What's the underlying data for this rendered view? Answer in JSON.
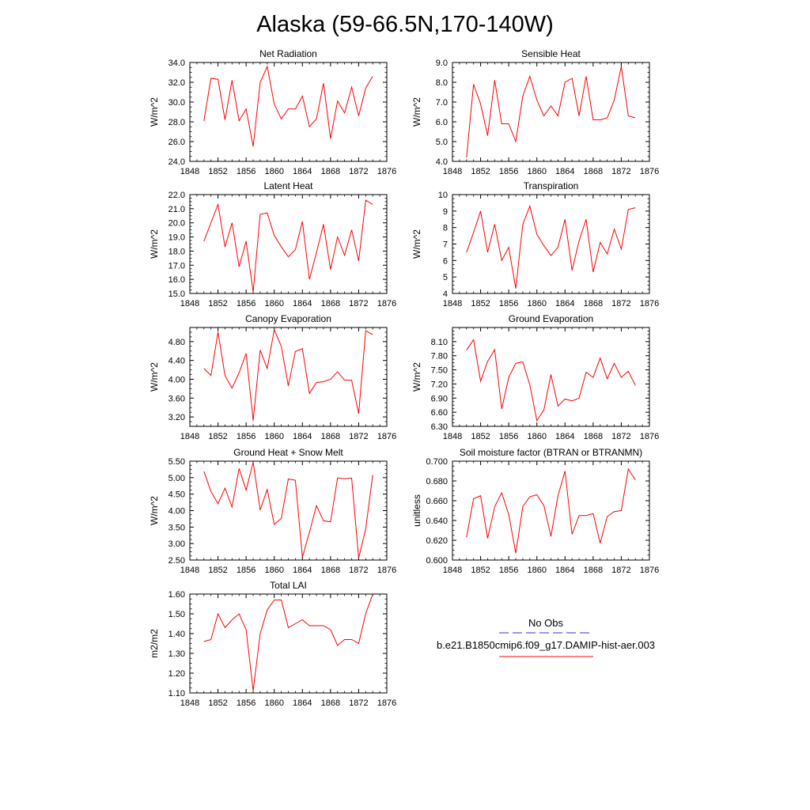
{
  "figure": {
    "title": "Alaska (59-66.5N,170-140W)"
  },
  "legend": {
    "items": [
      {
        "label": "No Obs",
        "color": "#3333cc",
        "dash": "dashed"
      },
      {
        "label": "b.e21.B1850cmip6.f09_g17.DAMIP-hist-aer.003",
        "color": "#ff0000",
        "dash": "solid"
      }
    ]
  },
  "chart_data": [
    {
      "type": "line",
      "title": "Net Radiation",
      "ylabel": "W/m^2",
      "xlim": [
        1848,
        1876
      ],
      "ylim": [
        24.0,
        34.0
      ],
      "xticks": [
        1848,
        1852,
        1856,
        1860,
        1864,
        1868,
        1872,
        1876
      ],
      "yticks": [
        24.0,
        26.0,
        28.0,
        30.0,
        32.0,
        34.0
      ],
      "ydecimals": 1,
      "x": [
        1850,
        1851,
        1852,
        1853,
        1854,
        1855,
        1856,
        1857,
        1858,
        1859,
        1860,
        1861,
        1862,
        1863,
        1864,
        1865,
        1866,
        1867,
        1868,
        1869,
        1870,
        1871,
        1872,
        1873,
        1874
      ],
      "series": [
        {
          "color": "#ff0000",
          "values": [
            28.1,
            32.4,
            32.3,
            28.2,
            32.2,
            28.1,
            29.3,
            25.5,
            32.0,
            33.6,
            29.8,
            28.3,
            29.3,
            29.3,
            30.6,
            27.5,
            28.3,
            31.9,
            26.3,
            30.1,
            28.9,
            31.5,
            28.6,
            31.4,
            32.6
          ]
        }
      ]
    },
    {
      "type": "line",
      "title": "Sensible Heat",
      "ylabel": "W/m^2",
      "xlim": [
        1848,
        1876
      ],
      "ylim": [
        4.0,
        9.0
      ],
      "xticks": [
        1848,
        1852,
        1856,
        1860,
        1864,
        1868,
        1872,
        1876
      ],
      "yticks": [
        4.0,
        5.0,
        6.0,
        7.0,
        8.0,
        9.0
      ],
      "ydecimals": 1,
      "x": [
        1850,
        1851,
        1852,
        1853,
        1854,
        1855,
        1856,
        1857,
        1858,
        1859,
        1860,
        1861,
        1862,
        1863,
        1864,
        1865,
        1866,
        1867,
        1868,
        1869,
        1870,
        1871,
        1872,
        1873,
        1874
      ],
      "series": [
        {
          "color": "#ff0000",
          "values": [
            4.2,
            7.9,
            6.9,
            5.3,
            8.1,
            5.9,
            5.9,
            5.0,
            7.3,
            8.3,
            7.1,
            6.3,
            6.8,
            6.3,
            8.0,
            8.2,
            6.3,
            8.3,
            6.1,
            6.1,
            6.2,
            7.1,
            8.8,
            6.3,
            6.2
          ]
        }
      ]
    },
    {
      "type": "line",
      "title": "Latent Heat",
      "ylabel": "W/m^2",
      "xlim": [
        1848,
        1876
      ],
      "ylim": [
        15.0,
        22.0
      ],
      "xticks": [
        1848,
        1852,
        1856,
        1860,
        1864,
        1868,
        1872,
        1876
      ],
      "yticks": [
        15.0,
        16.0,
        17.0,
        18.0,
        19.0,
        20.0,
        21.0,
        22.0
      ],
      "ydecimals": 1,
      "x": [
        1850,
        1851,
        1852,
        1853,
        1854,
        1855,
        1856,
        1857,
        1858,
        1859,
        1860,
        1861,
        1862,
        1863,
        1864,
        1865,
        1866,
        1867,
        1868,
        1869,
        1870,
        1871,
        1872,
        1873,
        1874
      ],
      "series": [
        {
          "color": "#ff0000",
          "values": [
            18.7,
            20.0,
            21.3,
            18.3,
            20.0,
            16.9,
            18.7,
            15.1,
            20.6,
            20.7,
            19.1,
            18.3,
            17.6,
            18.1,
            20.1,
            16.0,
            17.9,
            19.9,
            16.7,
            19.0,
            17.7,
            19.5,
            17.3,
            21.6,
            21.3
          ]
        }
      ]
    },
    {
      "type": "line",
      "title": "Transpiration",
      "ylabel": "W/m^2",
      "xlim": [
        1848,
        1876
      ],
      "ylim": [
        4,
        10
      ],
      "xticks": [
        1848,
        1852,
        1856,
        1860,
        1864,
        1868,
        1872,
        1876
      ],
      "yticks": [
        4,
        5,
        6,
        7,
        8,
        9,
        10
      ],
      "ydecimals": 0,
      "x": [
        1850,
        1851,
        1852,
        1853,
        1854,
        1855,
        1856,
        1857,
        1858,
        1859,
        1860,
        1861,
        1862,
        1863,
        1864,
        1865,
        1866,
        1867,
        1868,
        1869,
        1870,
        1871,
        1872,
        1873,
        1874
      ],
      "series": [
        {
          "color": "#ff0000",
          "values": [
            6.5,
            7.7,
            9.0,
            6.5,
            8.2,
            6.0,
            6.8,
            4.3,
            8.2,
            9.3,
            7.6,
            6.9,
            6.3,
            6.8,
            8.5,
            5.4,
            7.2,
            8.5,
            5.3,
            7.1,
            6.4,
            7.9,
            6.7,
            9.1,
            9.2
          ]
        }
      ]
    },
    {
      "type": "line",
      "title": "Canopy Evaporation",
      "ylabel": "W/m^2",
      "xlim": [
        1848,
        1876
      ],
      "ylim": [
        3.0,
        5.1
      ],
      "xticks": [
        1848,
        1852,
        1856,
        1860,
        1864,
        1868,
        1872,
        1876
      ],
      "yticks": [
        3.2,
        3.6,
        4.0,
        4.4,
        4.8
      ],
      "ydecimals": 2,
      "x": [
        1850,
        1851,
        1852,
        1853,
        1854,
        1855,
        1856,
        1857,
        1858,
        1859,
        1860,
        1861,
        1862,
        1863,
        1864,
        1865,
        1866,
        1867,
        1868,
        1869,
        1870,
        1871,
        1872,
        1873,
        1874
      ],
      "series": [
        {
          "color": "#ff0000",
          "values": [
            4.23,
            4.08,
            5.0,
            4.08,
            3.81,
            4.14,
            4.55,
            3.12,
            4.62,
            4.23,
            5.05,
            4.7,
            3.86,
            4.59,
            4.65,
            3.7,
            3.93,
            3.95,
            4.0,
            4.16,
            3.98,
            3.98,
            3.27,
            5.03,
            4.95
          ]
        }
      ]
    },
    {
      "type": "line",
      "title": "Ground Evaporation",
      "ylabel": "W/m^2",
      "xlim": [
        1848,
        1876
      ],
      "ylim": [
        6.3,
        8.4
      ],
      "xticks": [
        1848,
        1852,
        1856,
        1860,
        1864,
        1868,
        1872,
        1876
      ],
      "yticks": [
        6.3,
        6.6,
        6.9,
        7.2,
        7.5,
        7.8,
        8.1
      ],
      "ydecimals": 2,
      "x": [
        1850,
        1851,
        1852,
        1853,
        1854,
        1855,
        1856,
        1857,
        1858,
        1859,
        1860,
        1861,
        1862,
        1863,
        1864,
        1865,
        1866,
        1867,
        1868,
        1869,
        1870,
        1871,
        1872,
        1873,
        1874
      ],
      "series": [
        {
          "color": "#ff0000",
          "values": [
            7.92,
            8.14,
            7.26,
            7.68,
            7.93,
            6.67,
            7.34,
            7.64,
            7.67,
            7.18,
            6.42,
            6.65,
            7.4,
            6.73,
            6.88,
            6.84,
            6.9,
            7.45,
            7.34,
            7.75,
            7.31,
            7.64,
            7.34,
            7.47,
            7.17
          ]
        }
      ]
    },
    {
      "type": "line",
      "title": "Ground Heat + Snow Melt",
      "ylabel": "W/m^2",
      "xlim": [
        1848,
        1876
      ],
      "ylim": [
        2.5,
        5.5
      ],
      "xticks": [
        1848,
        1852,
        1856,
        1860,
        1864,
        1868,
        1872,
        1876
      ],
      "yticks": [
        2.5,
        3.0,
        3.5,
        4.0,
        4.5,
        5.0,
        5.5
      ],
      "ydecimals": 2,
      "x": [
        1850,
        1851,
        1852,
        1853,
        1854,
        1855,
        1856,
        1857,
        1858,
        1859,
        1860,
        1861,
        1862,
        1863,
        1864,
        1865,
        1866,
        1867,
        1868,
        1869,
        1870,
        1871,
        1872,
        1873,
        1874
      ],
      "series": [
        {
          "color": "#ff0000",
          "values": [
            5.19,
            4.58,
            4.21,
            4.68,
            4.11,
            5.28,
            4.62,
            5.47,
            4.02,
            4.64,
            3.58,
            3.76,
            4.96,
            4.92,
            2.59,
            3.34,
            4.15,
            3.69,
            3.66,
            4.99,
            4.97,
            4.99,
            2.56,
            3.45,
            5.08
          ]
        }
      ]
    },
    {
      "type": "line",
      "title": "Soil moisture factor (BTRAN or BTRANMN)",
      "ylabel": "unitless",
      "xlim": [
        1848,
        1876
      ],
      "ylim": [
        0.6,
        0.7
      ],
      "xticks": [
        1848,
        1852,
        1856,
        1860,
        1864,
        1868,
        1872,
        1876
      ],
      "yticks": [
        0.6,
        0.62,
        0.64,
        0.66,
        0.68,
        0.7
      ],
      "ydecimals": 3,
      "x": [
        1850,
        1851,
        1852,
        1853,
        1854,
        1855,
        1856,
        1857,
        1858,
        1859,
        1860,
        1861,
        1862,
        1863,
        1864,
        1865,
        1866,
        1867,
        1868,
        1869,
        1870,
        1871,
        1872,
        1873,
        1874
      ],
      "series": [
        {
          "color": "#ff0000",
          "values": [
            0.623,
            0.662,
            0.665,
            0.622,
            0.654,
            0.668,
            0.646,
            0.607,
            0.654,
            0.664,
            0.666,
            0.655,
            0.624,
            0.665,
            0.69,
            0.626,
            0.645,
            0.645,
            0.647,
            0.617,
            0.644,
            0.649,
            0.65,
            0.692,
            0.681
          ]
        }
      ]
    },
    {
      "type": "line",
      "title": "Total LAI",
      "ylabel": "m2/m2",
      "xlim": [
        1848,
        1876
      ],
      "ylim": [
        1.1,
        1.6
      ],
      "xticks": [
        1848,
        1852,
        1856,
        1860,
        1864,
        1868,
        1872,
        1876
      ],
      "yticks": [
        1.1,
        1.2,
        1.3,
        1.4,
        1.5,
        1.6
      ],
      "ydecimals": 2,
      "x": [
        1850,
        1851,
        1852,
        1853,
        1854,
        1855,
        1856,
        1857,
        1858,
        1859,
        1860,
        1861,
        1862,
        1863,
        1864,
        1865,
        1866,
        1867,
        1868,
        1869,
        1870,
        1871,
        1872,
        1873,
        1874
      ],
      "series": [
        {
          "color": "#ff0000",
          "values": [
            1.36,
            1.37,
            1.5,
            1.43,
            1.47,
            1.5,
            1.42,
            1.11,
            1.4,
            1.52,
            1.57,
            1.57,
            1.43,
            1.45,
            1.47,
            1.44,
            1.44,
            1.44,
            1.42,
            1.34,
            1.37,
            1.37,
            1.35,
            1.5,
            1.6
          ]
        }
      ]
    }
  ]
}
